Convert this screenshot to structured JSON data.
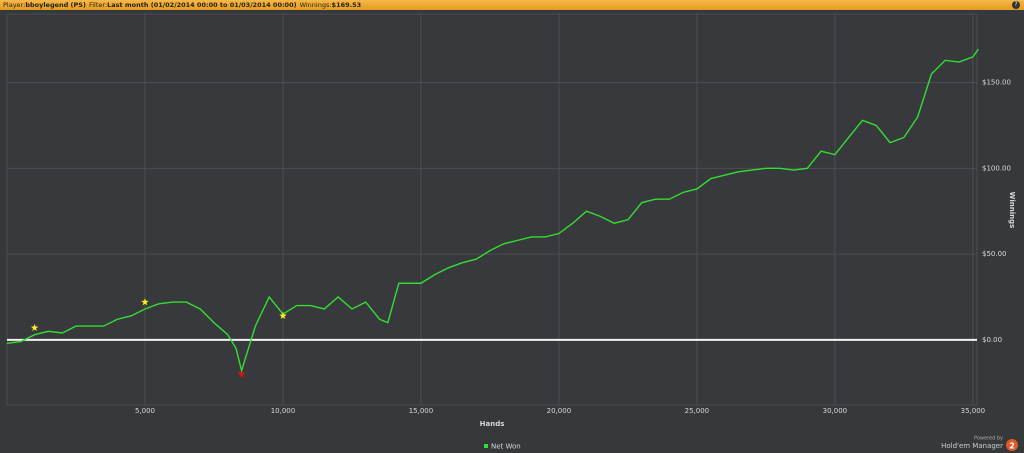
{
  "header": {
    "player_label": "Player:",
    "player": "bboylegend (PS)",
    "filter_label": "Filter:",
    "filter": "Last month (01/02/2014 00:00 to 01/03/2014 00:00)",
    "winnings_label": "Winnings:",
    "winnings": "$169.53",
    "help": "?"
  },
  "chart_data": {
    "type": "line",
    "x": [
      0,
      500,
      1000,
      1500,
      2000,
      2500,
      3000,
      3500,
      4000,
      4500,
      5000,
      5500,
      6000,
      6500,
      7000,
      7500,
      8000,
      8300,
      8500,
      9000,
      9500,
      10000,
      10500,
      11000,
      11500,
      12000,
      12500,
      13000,
      13500,
      13800,
      14200,
      15000,
      15500,
      16000,
      16500,
      17000,
      17500,
      18000,
      18500,
      19000,
      19500,
      20000,
      20500,
      21000,
      21500,
      22000,
      22500,
      23000,
      23500,
      24000,
      24500,
      25000,
      25500,
      26000,
      26500,
      27000,
      27500,
      28000,
      28500,
      29000,
      29500,
      30000,
      30500,
      31000,
      31500,
      32000,
      32500,
      33000,
      33500,
      34000,
      34500,
      35000,
      35200
    ],
    "series": [
      {
        "name": "Net Won",
        "color": "#33dd33",
        "values": [
          -2,
          -1,
          3,
          5,
          4,
          8,
          8,
          8,
          12,
          14,
          18,
          21,
          22,
          22,
          18,
          10,
          3,
          -5,
          -18,
          8,
          25,
          15,
          20,
          20,
          18,
          25,
          18,
          22,
          12,
          10,
          33,
          33,
          38,
          42,
          45,
          47,
          52,
          56,
          58,
          60,
          60,
          62,
          68,
          75,
          72,
          68,
          70,
          80,
          82,
          82,
          86,
          88,
          94,
          96,
          98,
          99,
          100,
          100,
          99,
          100,
          110,
          108,
          118,
          128,
          125,
          115,
          118,
          130,
          155,
          163,
          162,
          165,
          169.53
        ]
      }
    ],
    "markers": [
      {
        "x": 1000,
        "y": 7,
        "shape": "star",
        "color": "#ffee22"
      },
      {
        "x": 5000,
        "y": 22,
        "shape": "star",
        "color": "#ffee22"
      },
      {
        "x": 10000,
        "y": 14,
        "shape": "star",
        "color": "#ffee22"
      },
      {
        "x": 8500,
        "y": -20,
        "shape": "drop",
        "color": "#dd1111"
      }
    ],
    "xlabel": "Hands",
    "ylabel": "Winnings",
    "xlim": [
      0,
      35150
    ],
    "ylim": [
      -38,
      190
    ],
    "xticks": [
      {
        "value": 5000,
        "label": "5,000"
      },
      {
        "value": 10000,
        "label": "10,000"
      },
      {
        "value": 15000,
        "label": "15,000"
      },
      {
        "value": 20000,
        "label": "20,000"
      },
      {
        "value": 25000,
        "label": "25,000"
      },
      {
        "value": 30000,
        "label": "30,000"
      },
      {
        "value": 35000,
        "label": "35,000"
      }
    ],
    "yticks": [
      {
        "value": 0,
        "label": "$0.00"
      },
      {
        "value": 50,
        "label": "$50.00"
      },
      {
        "value": 100,
        "label": "$100.00"
      },
      {
        "value": 150,
        "label": "$150.00"
      }
    ],
    "grid": true,
    "zero_line": true,
    "legend": "bottom"
  },
  "footer": {
    "powered_by": "Powered by",
    "brand": "Hold'em Manager",
    "version": "2"
  }
}
